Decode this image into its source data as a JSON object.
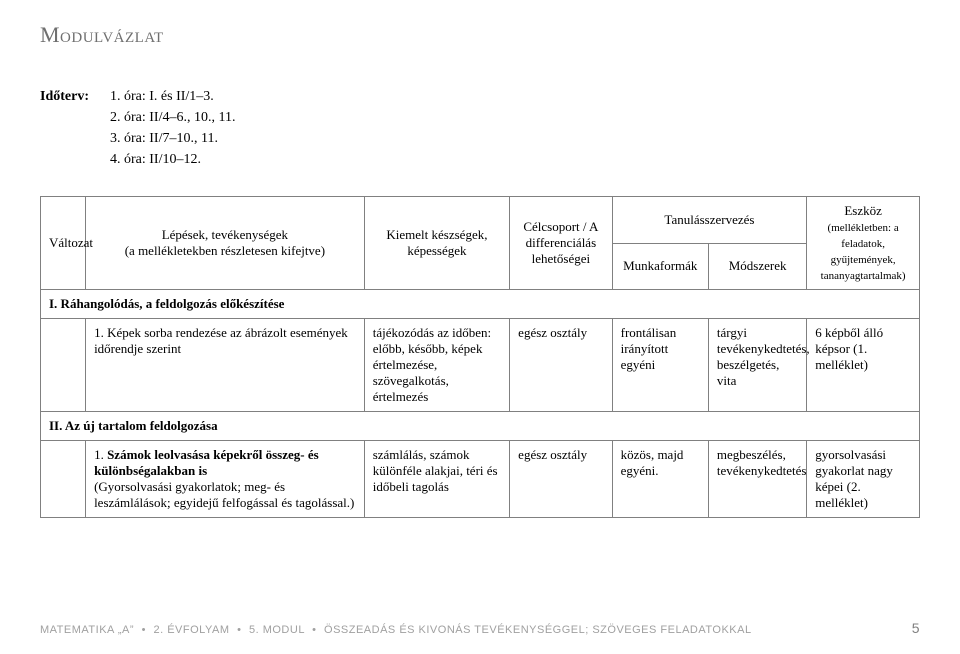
{
  "title": "Modulvázlat",
  "schedule": {
    "label": "Időterv:",
    "lines": [
      "1. óra: I. és II/1–3.",
      "2. óra: II/4–6., 10., 11.",
      "3. óra: II/7–10., 11.",
      "4. óra: II/10–12."
    ]
  },
  "table": {
    "headers": {
      "valtozat": "Változat",
      "lepesek": "Lépések, tevékenységek",
      "lepesek_sub": "(a mellékletekben részletesen kifejtve)",
      "kiemelt": "Kiemelt készségek, képességek",
      "celcsoport": "Célcsoport / A differenciálás lehetőségei",
      "tanulas": "Tanulásszervezés",
      "munkaformak": "Munkaformák",
      "modszerek": "Módszerek",
      "eszkoz": "Eszköz",
      "eszkoz_sub": "(mellékletben: a feladatok, gyűjtemények, tananyagtartalmak)"
    },
    "section1": "I. Ráhangolódás, a feldolgozás előkészítése",
    "row1": {
      "num": "1.",
      "desc": "Képek sorba rendezése az ábrázolt események időrendje szerint",
      "kiemelt": "tájékozódás az időben: előbb, később,\nképek értelmezése, szövegalkotás, értelmezés",
      "celcs": "egész osztály",
      "munk": "frontálisan irányított egyéni",
      "mod": "tárgyi tevékenykedtetés, beszélgetés, vita",
      "eszkoz": "6 képből álló képsor (1. melléklet)"
    },
    "section2": "II. Az új tartalom feldolgozása",
    "row2": {
      "num": "1.",
      "desc": "Számok leolvasása képekről összeg- és különbségalakban is",
      "desc_sub": "(Gyorsolvasási gyakorlatok; meg- és leszámlálások; egyidejű felfogással és tagolással.)",
      "kiemelt": "számlálás, számok különféle alakjai,\ntéri és időbeli tagolás",
      "celcs": "egész osztály",
      "munk": "közös, majd egyéni.",
      "mod": "megbeszélés, tevékenykedtetés",
      "eszkoz": "gyorsolvasási gyakorlat nagy képei (2. melléklet)"
    }
  },
  "footer": {
    "left_parts": [
      "MATEMATIKA „A”",
      "2. ÉVFOLYAM",
      "5. MODUL",
      "ÖSSZEADÁS ÉS KIVONÁS TEVÉKENYSÉGGEL; SZÖVEGES FELADATOKKAL"
    ],
    "sep": "•",
    "pagenum": "5"
  },
  "colors": {
    "title_color": "#6f6f6f",
    "border_color": "#808080",
    "footer_color": "#a0a0a0"
  }
}
